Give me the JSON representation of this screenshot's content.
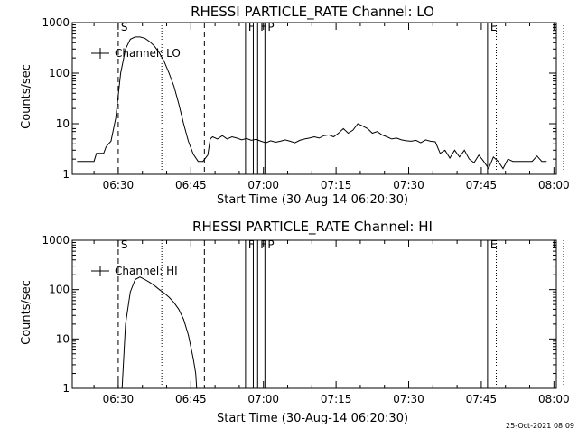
{
  "footer": {
    "timestamp": "25-Oct-2021 08:09"
  },
  "chart_data": [
    {
      "type": "line",
      "title": "RHESSI PARTICLE_RATE Channel: LO",
      "xlabel": "Start Time (30-Aug-14 06:20:30)",
      "ylabel": "Counts/sec",
      "yscale": "log",
      "ylim": [
        1,
        1000
      ],
      "xlim_minutes_after_0620": [
        0,
        100
      ],
      "xticks": [
        "06:30",
        "06:45",
        "07:00",
        "07:15",
        "07:30",
        "07:45",
        "08:00"
      ],
      "yticks": [
        "1",
        "10",
        "100",
        "1000"
      ],
      "legend": "Channel: LO",
      "grid": false,
      "series": [
        {
          "name": "Channel: LO",
          "x": [
            1,
            4.5,
            5,
            6.5,
            7,
            7.5,
            8,
            9,
            10,
            11,
            12,
            13,
            14,
            15,
            16,
            17,
            18,
            19,
            20,
            21,
            22,
            23,
            24,
            25,
            26,
            27,
            28,
            28.5,
            29,
            30,
            31,
            32,
            33,
            34,
            35,
            36,
            37,
            38,
            39,
            40,
            41,
            42,
            43,
            44,
            45,
            46,
            47,
            48,
            49,
            50,
            51,
            52,
            53,
            54,
            55,
            56,
            57,
            58,
            59,
            60,
            61,
            62,
            63,
            64,
            65,
            66,
            67,
            68,
            69,
            70,
            71,
            72,
            73,
            74,
            75,
            76,
            77,
            78,
            79,
            80,
            81,
            82,
            83,
            84,
            85,
            86,
            87,
            88,
            89,
            90,
            91,
            92,
            93,
            94,
            95,
            96,
            97,
            98
          ],
          "y": [
            1.8,
            1.8,
            2.6,
            2.6,
            3.5,
            4,
            4.5,
            13,
            100,
            300,
            470,
            520,
            520,
            490,
            420,
            340,
            250,
            170,
            100,
            55,
            25,
            10,
            4.5,
            2.5,
            1.8,
            1.8,
            2.4,
            5,
            5.5,
            5,
            5.8,
            5,
            5.5,
            5.2,
            4.8,
            5.1,
            4.7,
            4.9,
            4.5,
            4.2,
            4.6,
            4.3,
            4.5,
            4.8,
            4.5,
            4.2,
            4.7,
            5,
            5.2,
            5.5,
            5.2,
            5.8,
            6,
            5.5,
            6.5,
            8,
            6.5,
            7.5,
            10,
            9,
            8,
            6.5,
            7,
            6,
            5.5,
            5,
            5.2,
            4.8,
            4.6,
            4.5,
            4.7,
            4.2,
            4.8,
            4.5,
            4.4,
            2.6,
            3,
            2.1,
            3,
            2.2,
            3,
            2,
            1.7,
            2.4,
            1.8,
            1.3,
            2.2,
            1.8,
            1.3,
            2,
            1.8,
            1.8,
            1.8,
            1.8,
            1.8,
            2.3,
            1.8,
            1.8
          ]
        }
      ],
      "annotations": [
        {
          "x": 9.5,
          "style": "dashed",
          "label": "S"
        },
        {
          "x": 18.5,
          "style": "dotted",
          "label": ""
        },
        {
          "x": 27.3,
          "style": "dashed",
          "label": ""
        },
        {
          "x": 35.8,
          "style": "solid",
          "label": "F"
        },
        {
          "x": 37.4,
          "style": "solid",
          "label": ""
        },
        {
          "x": 38.3,
          "style": "solid",
          "label": "F"
        },
        {
          "x": 39.8,
          "style": "solid",
          "label": "P"
        },
        {
          "x": 85.8,
          "style": "solid",
          "label": "E"
        },
        {
          "x": 87.6,
          "style": "dotted",
          "label": ""
        },
        {
          "x": 101.5,
          "style": "dotted",
          "label": ""
        }
      ]
    },
    {
      "type": "line",
      "title": "RHESSI PARTICLE_RATE Channel: HI",
      "xlabel": "Start Time (30-Aug-14 06:20:30)",
      "ylabel": "Counts/sec",
      "yscale": "log",
      "ylim": [
        1,
        1000
      ],
      "xlim_minutes_after_0620": [
        0,
        100
      ],
      "xticks": [
        "06:30",
        "06:45",
        "07:00",
        "07:15",
        "07:30",
        "07:45",
        "08:00"
      ],
      "yticks": [
        "1",
        "10",
        "100",
        "1000"
      ],
      "legend": "Channel: HI",
      "grid": false,
      "series": [
        {
          "name": "Channel: HI",
          "x": [
            10.3,
            11,
            12,
            13,
            14,
            15,
            16,
            17,
            18,
            19,
            20,
            21,
            22,
            23,
            24,
            25,
            25.5,
            25.7
          ],
          "y": [
            1,
            20,
            90,
            160,
            180,
            160,
            140,
            120,
            100,
            85,
            70,
            55,
            40,
            25,
            12,
            4,
            2,
            1
          ]
        }
      ],
      "annotations": [
        {
          "x": 9.5,
          "style": "dashed",
          "label": "S"
        },
        {
          "x": 18.5,
          "style": "dotted",
          "label": ""
        },
        {
          "x": 27.3,
          "style": "dashed",
          "label": ""
        },
        {
          "x": 35.8,
          "style": "solid",
          "label": "F"
        },
        {
          "x": 37.4,
          "style": "solid",
          "label": ""
        },
        {
          "x": 38.3,
          "style": "solid",
          "label": "F"
        },
        {
          "x": 39.8,
          "style": "solid",
          "label": "P"
        },
        {
          "x": 85.8,
          "style": "solid",
          "label": "E"
        },
        {
          "x": 87.6,
          "style": "dotted",
          "label": ""
        },
        {
          "x": 101.5,
          "style": "dotted",
          "label": ""
        }
      ]
    }
  ]
}
